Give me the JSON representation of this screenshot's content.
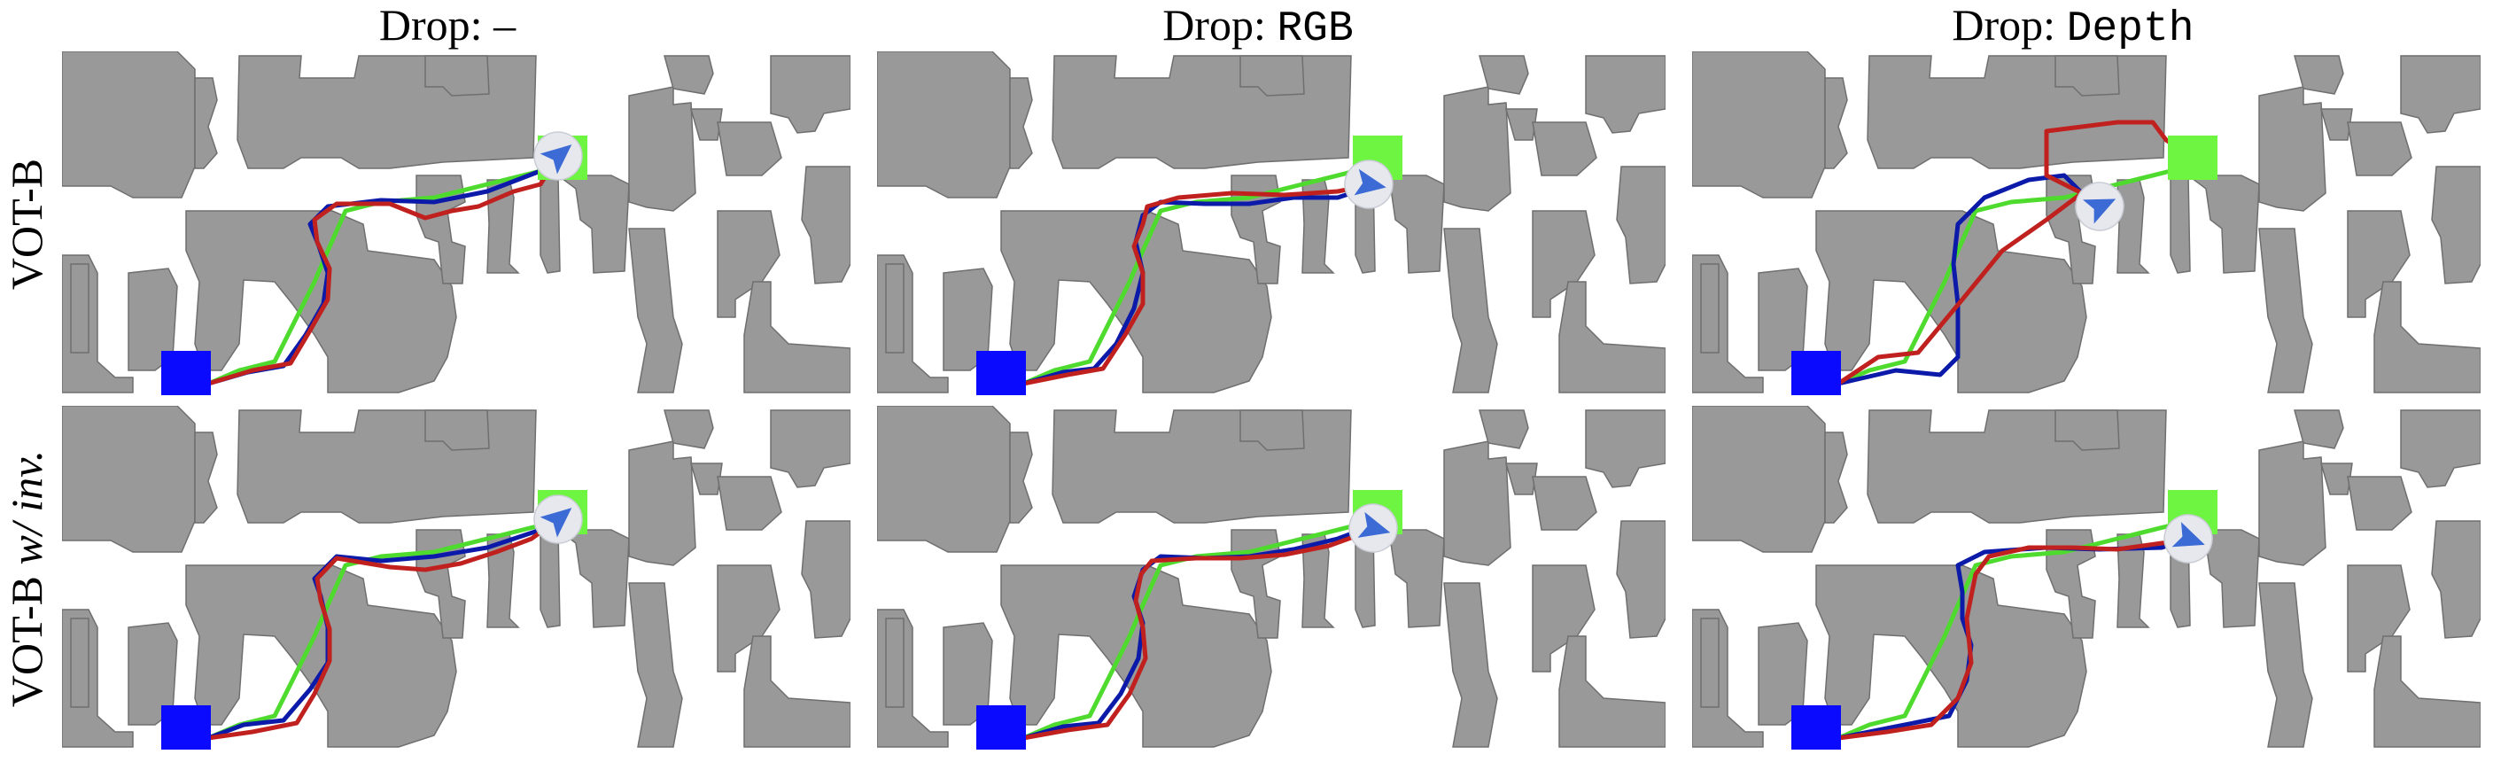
{
  "columns": [
    {
      "prefix": "Drop: ",
      "value": "–",
      "mono": false
    },
    {
      "prefix": "Drop: ",
      "value": "RGB",
      "mono": true
    },
    {
      "prefix": "Drop: ",
      "value": "Depth",
      "mono": true
    }
  ],
  "rows": [
    {
      "label_main": "VOT-B",
      "label_italic": ""
    },
    {
      "label_main": "VOT-B ",
      "label_italic": "w/ inv."
    }
  ],
  "colors": {
    "free_space": "#ffffff",
    "obstacle": "#999999",
    "obstacle_edge": "#6f6f6f",
    "start_marker": "#0a0aff",
    "goal_marker": "#6ef542",
    "shortest_path": "#4fdb2e",
    "agent_path_blue": "#0b1aa8",
    "agent_path_red": "#c0211f",
    "agent_disc": "#e6e8ee",
    "agent_arrow": "#3d6bd6"
  },
  "legend": {
    "start_marker": "square-blue",
    "goal_marker": "square-green",
    "agent_icon": "arrow-icon"
  }
}
